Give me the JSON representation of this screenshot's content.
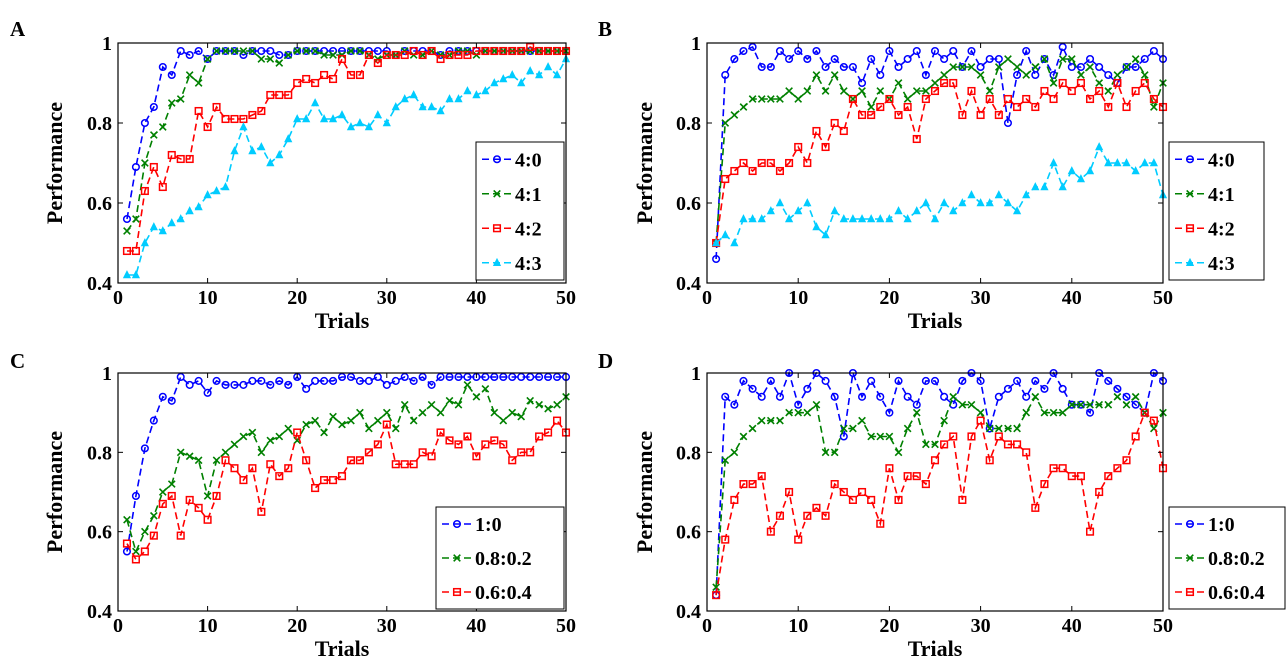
{
  "chart_data": [
    {
      "panel": "A",
      "type": "line",
      "xlabel": "Trials",
      "ylabel": "Performance",
      "xlim": [
        0,
        50
      ],
      "ylim": [
        0.4,
        1
      ],
      "xticks": [
        "0",
        "10",
        "20",
        "30",
        "40",
        "50"
      ],
      "yticks": [
        "0.4",
        "0.6",
        "0.8",
        "1"
      ],
      "grid": false,
      "legend_position": "lower-right",
      "series": [
        {
          "name": "4:0",
          "color": "#0000ff",
          "marker": "circle",
          "values": [
            0.56,
            0.69,
            0.8,
            0.84,
            0.94,
            0.92,
            0.98,
            0.97,
            0.98,
            0.96,
            0.98,
            0.98,
            0.98,
            0.97,
            0.98,
            0.98,
            0.98,
            0.97,
            0.97,
            0.98,
            0.98,
            0.98,
            0.98,
            0.98,
            0.98,
            0.98,
            0.98,
            0.98,
            0.98,
            0.98,
            0.97,
            0.98,
            0.98,
            0.98,
            0.98,
            0.97,
            0.98,
            0.98,
            0.98,
            0.98,
            0.98,
            0.98,
            0.98,
            0.98,
            0.98,
            0.98,
            0.98,
            0.98,
            0.98,
            0.98
          ]
        },
        {
          "name": "4:1",
          "color": "#008000",
          "marker": "x",
          "values": [
            0.53,
            0.56,
            0.7,
            0.77,
            0.79,
            0.85,
            0.86,
            0.92,
            0.9,
            0.96,
            0.98,
            0.98,
            0.98,
            0.98,
            0.98,
            0.96,
            0.96,
            0.95,
            0.97,
            0.98,
            0.98,
            0.98,
            0.97,
            0.97,
            0.97,
            0.98,
            0.98,
            0.97,
            0.96,
            0.97,
            0.97,
            0.98,
            0.97,
            0.97,
            0.98,
            0.97,
            0.97,
            0.98,
            0.98,
            0.97,
            0.98,
            0.98,
            0.98,
            0.98,
            0.98,
            0.98,
            0.98,
            0.98,
            0.98,
            0.98
          ]
        },
        {
          "name": "4:2",
          "color": "#ff0000",
          "marker": "square",
          "values": [
            0.48,
            0.48,
            0.63,
            0.69,
            0.64,
            0.72,
            0.71,
            0.71,
            0.83,
            0.79,
            0.84,
            0.81,
            0.81,
            0.81,
            0.82,
            0.83,
            0.87,
            0.87,
            0.87,
            0.9,
            0.91,
            0.9,
            0.92,
            0.91,
            0.96,
            0.92,
            0.92,
            0.97,
            0.95,
            0.97,
            0.97,
            0.97,
            0.98,
            0.97,
            0.98,
            0.96,
            0.97,
            0.97,
            0.97,
            0.98,
            0.98,
            0.98,
            0.98,
            0.98,
            0.98,
            0.99,
            0.98,
            0.98,
            0.98,
            0.98
          ]
        },
        {
          "name": "4:3",
          "color": "#00ccff",
          "marker": "triangle",
          "values": [
            0.42,
            0.42,
            0.5,
            0.54,
            0.53,
            0.55,
            0.56,
            0.58,
            0.59,
            0.62,
            0.63,
            0.64,
            0.73,
            0.79,
            0.73,
            0.74,
            0.7,
            0.72,
            0.76,
            0.81,
            0.81,
            0.85,
            0.81,
            0.81,
            0.82,
            0.79,
            0.8,
            0.79,
            0.82,
            0.8,
            0.84,
            0.86,
            0.87,
            0.84,
            0.84,
            0.83,
            0.86,
            0.86,
            0.88,
            0.87,
            0.88,
            0.9,
            0.91,
            0.92,
            0.9,
            0.93,
            0.92,
            0.94,
            0.92,
            0.96
          ]
        }
      ]
    },
    {
      "panel": "B",
      "type": "line",
      "xlabel": "Trials",
      "ylabel": "Performance",
      "xlim": [
        0,
        50
      ],
      "ylim": [
        0.4,
        1
      ],
      "xticks": [
        "0",
        "10",
        "20",
        "30",
        "40",
        "50"
      ],
      "yticks": [
        "0.4",
        "0.6",
        "0.8",
        "1"
      ],
      "grid": false,
      "legend_position": "outside-right",
      "series": [
        {
          "name": "4:0",
          "color": "#0000ff",
          "marker": "circle",
          "values": [
            0.46,
            0.92,
            0.96,
            0.98,
            0.99,
            0.94,
            0.94,
            0.98,
            0.96,
            0.98,
            0.96,
            0.98,
            0.94,
            0.96,
            0.94,
            0.94,
            0.9,
            0.96,
            0.92,
            0.98,
            0.94,
            0.96,
            0.98,
            0.92,
            0.98,
            0.96,
            0.98,
            0.94,
            0.98,
            0.94,
            0.96,
            0.96,
            0.8,
            0.92,
            0.98,
            0.92,
            0.96,
            0.92,
            0.99,
            0.94,
            0.94,
            0.96,
            0.94,
            0.92,
            0.9,
            0.94,
            0.94,
            0.96,
            0.98,
            0.96
          ]
        },
        {
          "name": "4:1",
          "color": "#008000",
          "marker": "x",
          "values": [
            0.5,
            0.8,
            0.82,
            0.84,
            0.86,
            0.86,
            0.86,
            0.86,
            0.88,
            0.86,
            0.88,
            0.92,
            0.88,
            0.92,
            0.88,
            0.86,
            0.88,
            0.84,
            0.88,
            0.86,
            0.9,
            0.86,
            0.88,
            0.88,
            0.9,
            0.92,
            0.94,
            0.94,
            0.94,
            0.92,
            0.88,
            0.94,
            0.96,
            0.94,
            0.92,
            0.94,
            0.96,
            0.9,
            0.96,
            0.96,
            0.92,
            0.94,
            0.9,
            0.88,
            0.92,
            0.94,
            0.96,
            0.92,
            0.84,
            0.9
          ]
        },
        {
          "name": "4:2",
          "color": "#ff0000",
          "marker": "square",
          "values": [
            0.5,
            0.66,
            0.68,
            0.7,
            0.68,
            0.7,
            0.7,
            0.68,
            0.7,
            0.74,
            0.7,
            0.78,
            0.74,
            0.8,
            0.78,
            0.86,
            0.82,
            0.82,
            0.84,
            0.86,
            0.82,
            0.84,
            0.76,
            0.86,
            0.88,
            0.9,
            0.9,
            0.82,
            0.88,
            0.82,
            0.86,
            0.82,
            0.86,
            0.84,
            0.86,
            0.84,
            0.88,
            0.86,
            0.9,
            0.88,
            0.9,
            0.86,
            0.88,
            0.84,
            0.9,
            0.84,
            0.88,
            0.9,
            0.86,
            0.84
          ]
        },
        {
          "name": "4:3",
          "color": "#00ccff",
          "marker": "triangle",
          "values": [
            0.5,
            0.52,
            0.5,
            0.56,
            0.56,
            0.56,
            0.58,
            0.6,
            0.56,
            0.58,
            0.6,
            0.54,
            0.52,
            0.58,
            0.56,
            0.56,
            0.56,
            0.56,
            0.56,
            0.56,
            0.58,
            0.56,
            0.58,
            0.6,
            0.56,
            0.6,
            0.58,
            0.6,
            0.62,
            0.6,
            0.6,
            0.62,
            0.6,
            0.58,
            0.62,
            0.64,
            0.64,
            0.7,
            0.64,
            0.68,
            0.66,
            0.68,
            0.74,
            0.7,
            0.7,
            0.7,
            0.68,
            0.7,
            0.7,
            0.62
          ]
        }
      ]
    },
    {
      "panel": "C",
      "type": "line",
      "xlabel": "Trials",
      "ylabel": "Performance",
      "xlim": [
        0,
        50
      ],
      "ylim": [
        0.4,
        1
      ],
      "xticks": [
        "0",
        "10",
        "20",
        "30",
        "40",
        "50"
      ],
      "yticks": [
        "0.4",
        "0.6",
        "0.8",
        "1"
      ],
      "grid": false,
      "legend_position": "lower-right",
      "series": [
        {
          "name": "1:0",
          "color": "#0000ff",
          "marker": "circle",
          "values": [
            0.55,
            0.69,
            0.81,
            0.88,
            0.94,
            0.93,
            0.99,
            0.97,
            0.98,
            0.95,
            0.98,
            0.97,
            0.97,
            0.97,
            0.98,
            0.98,
            0.97,
            0.98,
            0.97,
            0.99,
            0.96,
            0.98,
            0.98,
            0.98,
            0.99,
            0.99,
            0.98,
            0.98,
            0.99,
            0.97,
            0.98,
            0.99,
            0.98,
            0.99,
            0.97,
            0.99,
            0.99,
            0.99,
            0.99,
            0.99,
            0.99,
            0.99,
            0.99,
            0.99,
            0.99,
            0.99,
            0.99,
            0.99,
            0.99,
            0.99
          ]
        },
        {
          "name": "0.8:0.2",
          "color": "#008000",
          "marker": "x",
          "values": [
            0.63,
            0.55,
            0.6,
            0.64,
            0.7,
            0.72,
            0.8,
            0.79,
            0.78,
            0.69,
            0.78,
            0.8,
            0.82,
            0.84,
            0.85,
            0.8,
            0.83,
            0.84,
            0.86,
            0.83,
            0.87,
            0.88,
            0.85,
            0.89,
            0.87,
            0.88,
            0.9,
            0.86,
            0.88,
            0.9,
            0.86,
            0.92,
            0.88,
            0.9,
            0.92,
            0.9,
            0.93,
            0.92,
            0.97,
            0.94,
            0.96,
            0.9,
            0.88,
            0.9,
            0.89,
            0.93,
            0.92,
            0.91,
            0.92,
            0.94
          ]
        },
        {
          "name": "0.6:0.4",
          "color": "#ff0000",
          "marker": "square",
          "values": [
            0.57,
            0.53,
            0.55,
            0.59,
            0.67,
            0.69,
            0.59,
            0.68,
            0.66,
            0.63,
            0.69,
            0.78,
            0.76,
            0.73,
            0.76,
            0.65,
            0.77,
            0.74,
            0.76,
            0.85,
            0.78,
            0.71,
            0.73,
            0.73,
            0.74,
            0.78,
            0.78,
            0.8,
            0.82,
            0.87,
            0.77,
            0.77,
            0.77,
            0.8,
            0.79,
            0.85,
            0.83,
            0.82,
            0.84,
            0.79,
            0.82,
            0.83,
            0.82,
            0.78,
            0.8,
            0.8,
            0.84,
            0.85,
            0.88,
            0.85
          ]
        }
      ]
    },
    {
      "panel": "D",
      "type": "line",
      "xlabel": "Trials",
      "ylabel": "Performance",
      "xlim": [
        0,
        50
      ],
      "ylim": [
        0.4,
        1
      ],
      "xticks": [
        "0",
        "10",
        "20",
        "30",
        "40",
        "50"
      ],
      "yticks": [
        "0.4",
        "0.6",
        "0.8",
        "1"
      ],
      "grid": false,
      "legend_position": "outside-right",
      "series": [
        {
          "name": "1:0",
          "color": "#0000ff",
          "marker": "circle",
          "values": [
            0.44,
            0.94,
            0.92,
            0.98,
            0.96,
            0.94,
            0.98,
            0.94,
            1.0,
            0.92,
            0.96,
            1.0,
            0.98,
            0.94,
            0.84,
            1.0,
            0.94,
            0.98,
            0.94,
            0.9,
            0.98,
            0.94,
            0.92,
            0.98,
            0.98,
            0.94,
            0.92,
            0.98,
            1.0,
            0.98,
            0.86,
            0.94,
            0.96,
            0.98,
            0.94,
            0.98,
            0.96,
            1.0,
            0.96,
            0.92,
            0.92,
            0.9,
            1.0,
            0.98,
            0.96,
            0.94,
            0.92,
            0.9,
            1.0,
            0.98
          ]
        },
        {
          "name": "0.8:0.2",
          "color": "#008000",
          "marker": "x",
          "values": [
            0.46,
            0.78,
            0.8,
            0.84,
            0.86,
            0.88,
            0.88,
            0.88,
            0.9,
            0.9,
            0.9,
            0.92,
            0.8,
            0.8,
            0.86,
            0.86,
            0.88,
            0.84,
            0.84,
            0.84,
            0.8,
            0.86,
            0.9,
            0.82,
            0.82,
            0.88,
            0.94,
            0.92,
            0.92,
            0.9,
            0.86,
            0.86,
            0.86,
            0.86,
            0.9,
            0.94,
            0.9,
            0.9,
            0.9,
            0.92,
            0.92,
            0.92,
            0.92,
            0.92,
            0.94,
            0.92,
            0.94,
            0.9,
            0.86,
            0.9
          ]
        },
        {
          "name": "0.6:0.4",
          "color": "#ff0000",
          "marker": "square",
          "values": [
            0.44,
            0.58,
            0.68,
            0.72,
            0.72,
            0.74,
            0.6,
            0.64,
            0.7,
            0.58,
            0.64,
            0.66,
            0.64,
            0.72,
            0.7,
            0.68,
            0.7,
            0.68,
            0.62,
            0.76,
            0.68,
            0.74,
            0.74,
            0.72,
            0.78,
            0.82,
            0.84,
            0.68,
            0.84,
            0.88,
            0.78,
            0.84,
            0.82,
            0.82,
            0.8,
            0.66,
            0.72,
            0.76,
            0.76,
            0.74,
            0.74,
            0.6,
            0.7,
            0.74,
            0.76,
            0.78,
            0.84,
            0.9,
            0.88,
            0.76
          ]
        }
      ]
    }
  ]
}
